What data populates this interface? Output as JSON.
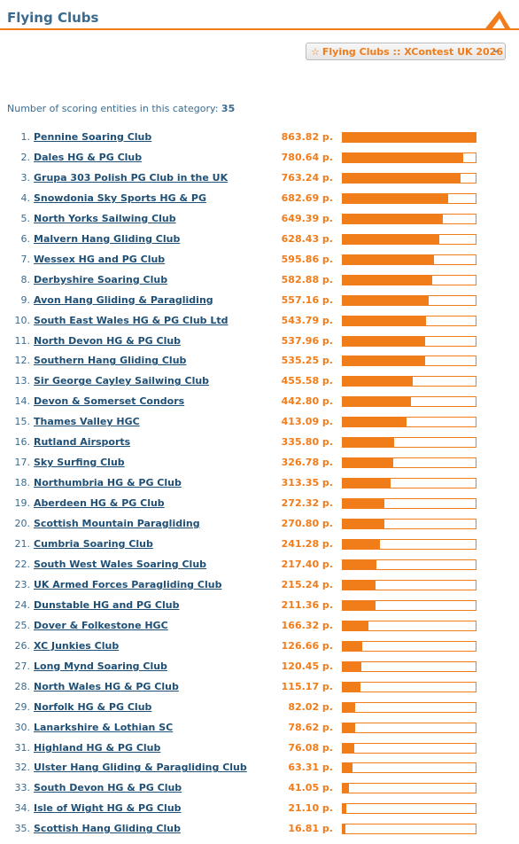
{
  "header": {
    "title": "Flying Clubs"
  },
  "selector": {
    "label": "Flying Clubs :: XContest UK 2026",
    "icon": "star-icon"
  },
  "summary": {
    "label": "Number of scoring entities in this category:",
    "count": "35"
  },
  "colors": {
    "accent": "#f07c1a",
    "link": "#1f4f74",
    "heading": "#3a6b8f"
  },
  "max_points": 863.82,
  "clubs": [
    {
      "rank": "1.",
      "name": "Pennine Soaring Club",
      "points": "863.82 p.",
      "value": 863.82
    },
    {
      "rank": "2.",
      "name": "Dales HG & PG Club",
      "points": "780.64 p.",
      "value": 780.64
    },
    {
      "rank": "3.",
      "name": "Grupa 303 Polish PG Club in the UK",
      "points": "763.24 p.",
      "value": 763.24
    },
    {
      "rank": "4.",
      "name": "Snowdonia Sky Sports HG & PG",
      "points": "682.69 p.",
      "value": 682.69
    },
    {
      "rank": "5.",
      "name": "North Yorks Sailwing Club",
      "points": "649.39 p.",
      "value": 649.39
    },
    {
      "rank": "6.",
      "name": "Malvern Hang Gliding Club",
      "points": "628.43 p.",
      "value": 628.43
    },
    {
      "rank": "7.",
      "name": "Wessex HG and PG Club",
      "points": "595.86 p.",
      "value": 595.86
    },
    {
      "rank": "8.",
      "name": "Derbyshire Soaring Club",
      "points": "582.88 p.",
      "value": 582.88
    },
    {
      "rank": "9.",
      "name": "Avon Hang Gliding & Paragliding",
      "points": "557.16 p.",
      "value": 557.16
    },
    {
      "rank": "10.",
      "name": "South East Wales HG & PG Club Ltd",
      "points": "543.79 p.",
      "value": 543.79
    },
    {
      "rank": "11.",
      "name": "North Devon HG & PG Club",
      "points": "537.96 p.",
      "value": 537.96
    },
    {
      "rank": "12.",
      "name": "Southern Hang Gliding Club",
      "points": "535.25 p.",
      "value": 535.25
    },
    {
      "rank": "13.",
      "name": "Sir George Cayley Sailwing Club",
      "points": "455.58 p.",
      "value": 455.58
    },
    {
      "rank": "14.",
      "name": "Devon & Somerset Condors",
      "points": "442.80 p.",
      "value": 442.8
    },
    {
      "rank": "15.",
      "name": "Thames Valley HGC",
      "points": "413.09 p.",
      "value": 413.09
    },
    {
      "rank": "16.",
      "name": "Rutland Airsports",
      "points": "335.80 p.",
      "value": 335.8
    },
    {
      "rank": "17.",
      "name": "Sky Surfing Club",
      "points": "326.78 p.",
      "value": 326.78
    },
    {
      "rank": "18.",
      "name": "Northumbria HG & PG Club",
      "points": "313.35 p.",
      "value": 313.35
    },
    {
      "rank": "19.",
      "name": "Aberdeen HG & PG Club",
      "points": "272.32 p.",
      "value": 272.32
    },
    {
      "rank": "20.",
      "name": "Scottish Mountain Paragliding",
      "points": "270.80 p.",
      "value": 270.8
    },
    {
      "rank": "21.",
      "name": "Cumbria Soaring Club",
      "points": "241.28 p.",
      "value": 241.28
    },
    {
      "rank": "22.",
      "name": "South West Wales Soaring Club",
      "points": "217.40 p.",
      "value": 217.4
    },
    {
      "rank": "23.",
      "name": "UK Armed Forces Paragliding Club",
      "points": "215.24 p.",
      "value": 215.24
    },
    {
      "rank": "24.",
      "name": "Dunstable HG and PG Club",
      "points": "211.36 p.",
      "value": 211.36
    },
    {
      "rank": "25.",
      "name": "Dover & Folkestone HGC",
      "points": "166.32 p.",
      "value": 166.32
    },
    {
      "rank": "26.",
      "name": "XC Junkies Club",
      "points": "126.66 p.",
      "value": 126.66
    },
    {
      "rank": "27.",
      "name": "Long Mynd Soaring Club",
      "points": "120.45 p.",
      "value": 120.45
    },
    {
      "rank": "28.",
      "name": "North Wales HG & PG Club",
      "points": "115.17 p.",
      "value": 115.17
    },
    {
      "rank": "29.",
      "name": "Norfolk HG & PG Club",
      "points": "82.02 p.",
      "value": 82.02
    },
    {
      "rank": "30.",
      "name": "Lanarkshire & Lothian SC",
      "points": "78.62 p.",
      "value": 78.62
    },
    {
      "rank": "31.",
      "name": "Highland HG & PG Club",
      "points": "76.08 p.",
      "value": 76.08
    },
    {
      "rank": "32.",
      "name": "Ulster Hang Gliding & Paragliding Club",
      "points": "63.31 p.",
      "value": 63.31
    },
    {
      "rank": "33.",
      "name": "South Devon HG & PG Club",
      "points": "41.05 p.",
      "value": 41.05
    },
    {
      "rank": "34.",
      "name": "Isle of Wight HG & PG Club",
      "points": "21.10 p.",
      "value": 21.1
    },
    {
      "rank": "35.",
      "name": "Scottish Hang Gliding Club",
      "points": "16.81 p.",
      "value": 16.81
    }
  ]
}
